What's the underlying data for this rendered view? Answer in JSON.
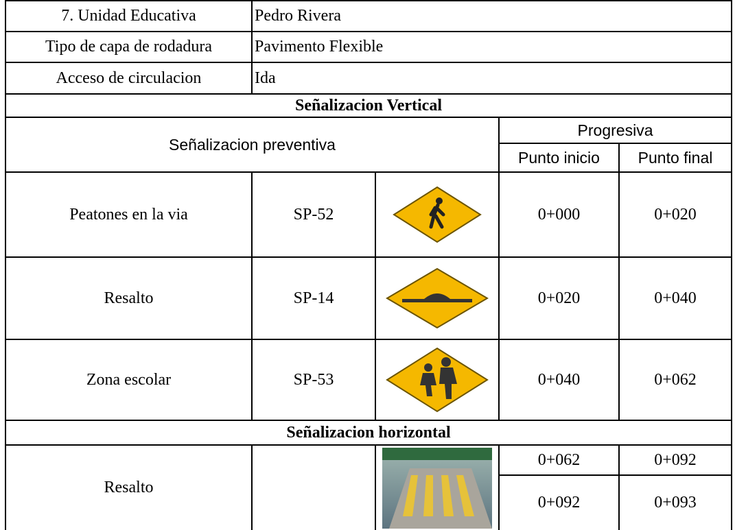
{
  "info": [
    {
      "label": "7. Unidad Educativa",
      "value": "Pedro Rivera"
    },
    {
      "label": "Tipo de capa de rodadura",
      "value": "Pavimento Flexible"
    },
    {
      "label": "Acceso de circulacion",
      "value": "Ida"
    }
  ],
  "vertical": {
    "title": "Señalizacion Vertical",
    "header": "Señalizacion preventiva",
    "progresiva": "Progresiva",
    "start": "Punto inicio",
    "end": "Punto final",
    "rows": [
      {
        "name": "Peatones en la via",
        "code": "SP-52",
        "start": "0+000",
        "end": "0+020"
      },
      {
        "name": "Resalto",
        "code": "SP-14",
        "start": "0+020",
        "end": "0+040"
      },
      {
        "name": "Zona escolar",
        "code": "SP-53",
        "start": "0+040",
        "end": "0+062"
      }
    ]
  },
  "horizontal": {
    "title": "Señalizacion horizontal",
    "name": "Resalto",
    "ranges": [
      [
        "0+062",
        "0+092"
      ],
      [
        "0+092",
        "0+093"
      ]
    ]
  }
}
